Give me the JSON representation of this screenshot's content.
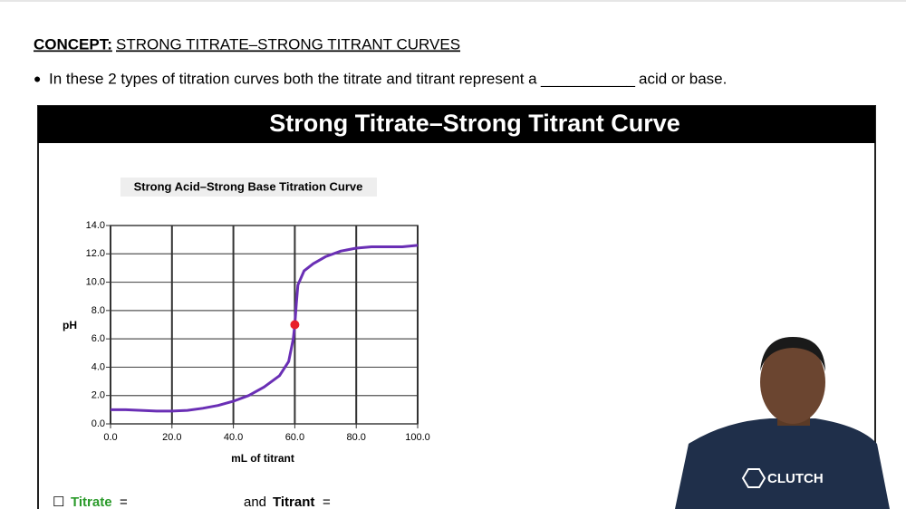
{
  "header": {
    "label": "CONCEPT:",
    "title": "STRONG TITRATE–STRONG TITRANT CURVES"
  },
  "bullet": {
    "marker": "●",
    "before": "In these 2 types of titration curves both the titrate and titrant represent a",
    "blank": "___________",
    "after": "acid or base."
  },
  "banner": "Strong Titrate–Strong Titrant Curve",
  "chart_data": {
    "type": "line",
    "title": "Strong Acid–Strong Base Titration Curve",
    "x_label": "mL of titrant",
    "y_label": "pH",
    "x": [
      0,
      5,
      10,
      15,
      20,
      25,
      30,
      35,
      40,
      45,
      50,
      55,
      58,
      59.5,
      60,
      60.5,
      61,
      63,
      66,
      70,
      75,
      80,
      85,
      90,
      95,
      100
    ],
    "series": [
      {
        "color": "#6a2fb5",
        "values": [
          1.0,
          1.0,
          0.95,
          0.9,
          0.9,
          0.95,
          1.1,
          1.3,
          1.6,
          2.0,
          2.6,
          3.4,
          4.4,
          6.0,
          7.0,
          8.5,
          9.8,
          10.8,
          11.3,
          11.8,
          12.2,
          12.4,
          12.5,
          12.5,
          12.5,
          12.6
        ]
      }
    ],
    "highlight": {
      "x": 60,
      "y": 7.0,
      "color": "#e8202a"
    },
    "xlim": [
      0,
      100
    ],
    "ylim": [
      0,
      14
    ],
    "xticks": [
      {
        "value": 0,
        "label": "0.0"
      },
      {
        "value": 20,
        "label": "20.0"
      },
      {
        "value": 40,
        "label": "40.0"
      },
      {
        "value": 60,
        "label": "60.0"
      },
      {
        "value": 80,
        "label": "80.0"
      },
      {
        "value": 100,
        "label": "100.0"
      }
    ],
    "yticks": [
      {
        "value": 0,
        "label": "0.0"
      },
      {
        "value": 2,
        "label": "2.0"
      },
      {
        "value": 4,
        "label": "4.0"
      },
      {
        "value": 6,
        "label": "6.0"
      },
      {
        "value": 8,
        "label": "8.0"
      },
      {
        "value": 10,
        "label": "10.0"
      },
      {
        "value": 12,
        "label": "12.0"
      },
      {
        "value": 14,
        "label": "14.0"
      }
    ],
    "grid": true
  },
  "footer": {
    "checkbox": "☐",
    "titrate": "Titrate",
    "eq1": "=",
    "and": "and",
    "titrant": "Titrant",
    "eq2": "="
  },
  "logo": "CLUTCH"
}
